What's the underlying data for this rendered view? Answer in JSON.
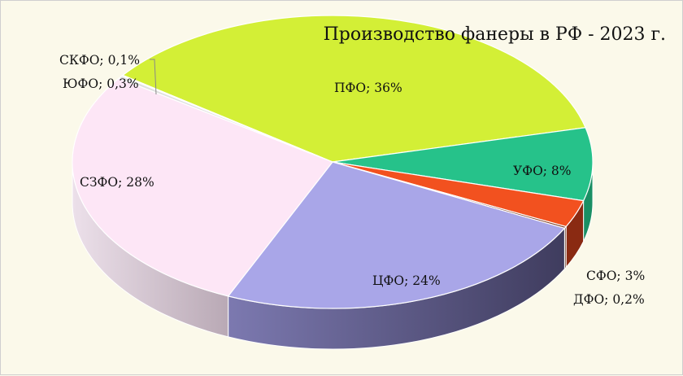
{
  "chart_data": {
    "type": "pie",
    "style": "3d",
    "title": "Производство фанеры в РФ - 2023 г.",
    "slices": [
      {
        "name": "ПФО",
        "label": "ПФО; 36%",
        "value": 36,
        "color": "#d3ef36",
        "side": "#a9c22a"
      },
      {
        "name": "УФО",
        "label": "УФО; 8%",
        "value": 8,
        "color": "#26c28a",
        "side": "#1a8f64"
      },
      {
        "name": "СФО",
        "label": "СФО; 3%",
        "value": 3,
        "color": "#f2511f",
        "side": "#8a2a12"
      },
      {
        "name": "ДФО",
        "label": "ДФО; 0,2%",
        "value": 0.2,
        "color": "#7a3a20",
        "side": "#5a2a14"
      },
      {
        "name": "ЦФО",
        "label": "ЦФО; 24%",
        "value": 24,
        "color": "#a9a6e8",
        "side": "#5d5a8e"
      },
      {
        "name": "СЗФО",
        "label": "СЗФО; 28%",
        "value": 28,
        "color": "#fde6f6",
        "side": "#cdbac8"
      },
      {
        "name": "ЮФО",
        "label": "ЮФО; 0,3%",
        "value": 0.3,
        "color": "#e0e0e0",
        "side": "#a0a0a0"
      },
      {
        "name": "СКФО",
        "label": "СКФО; 0,1%",
        "value": 0.1,
        "color": "#c8c8c8",
        "side": "#909090"
      }
    ]
  }
}
